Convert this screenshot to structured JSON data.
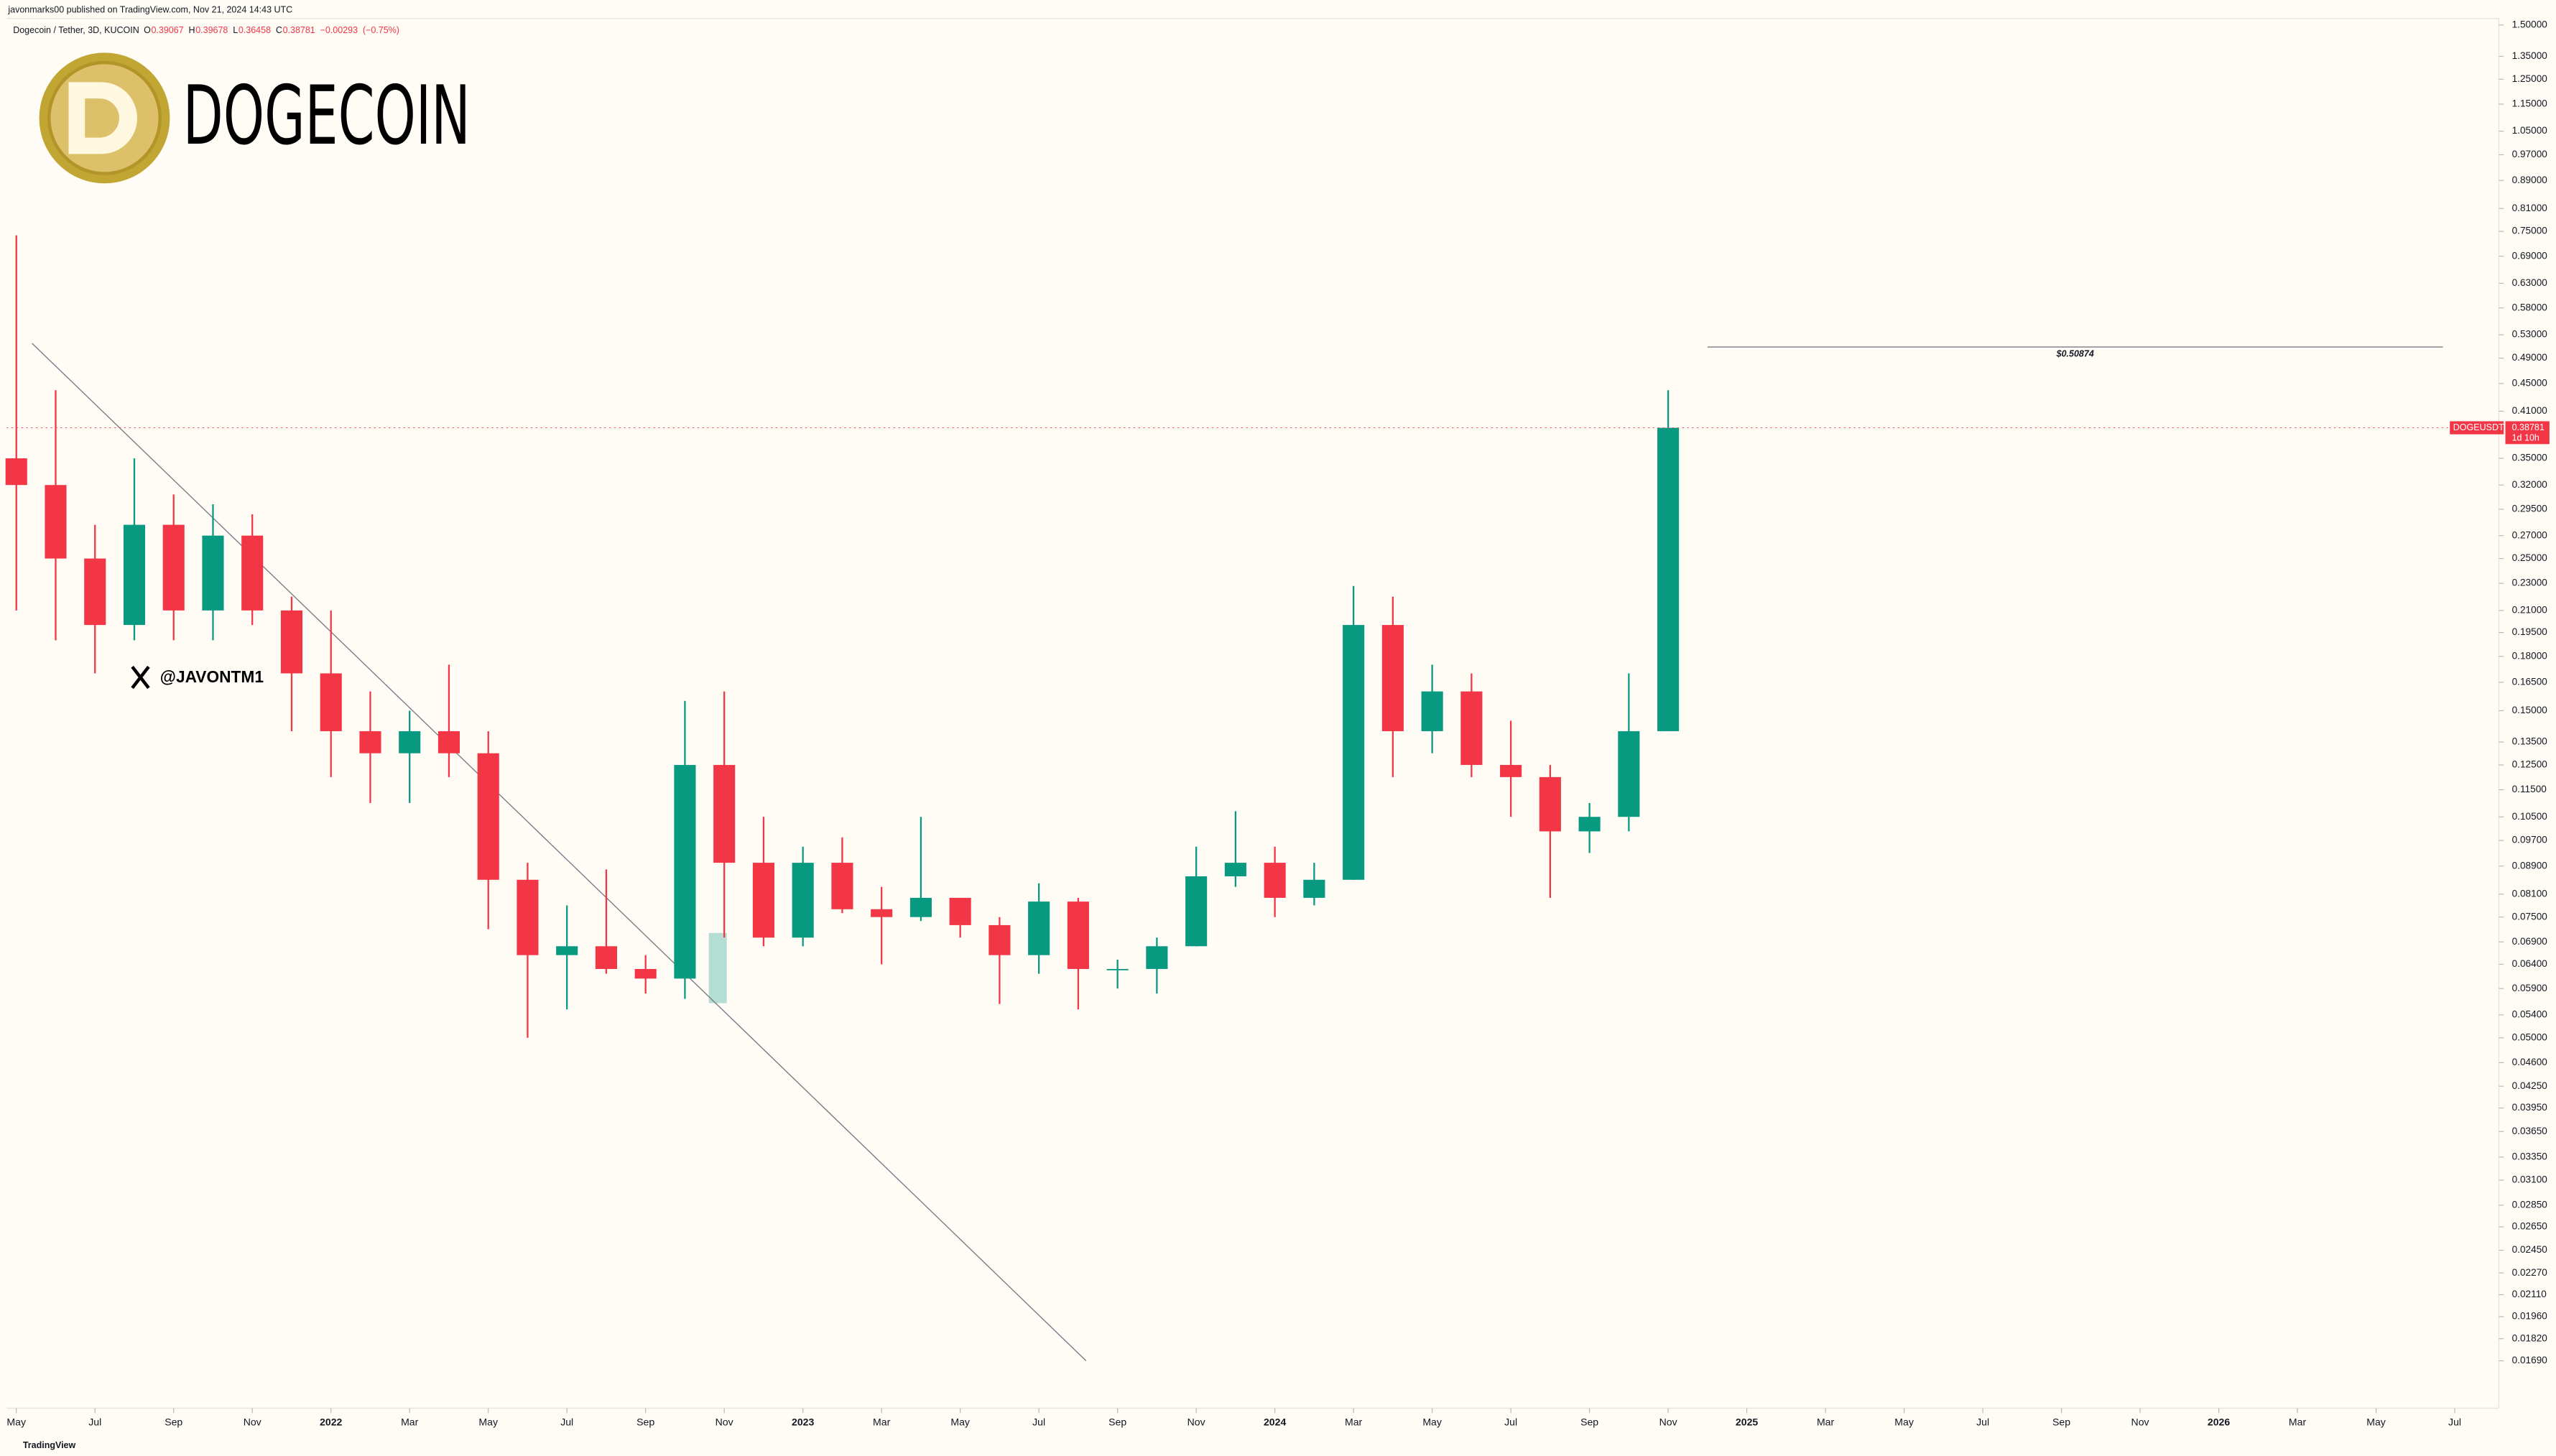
{
  "header": {
    "publisher": "javonmarks00 published on TradingView.com, Nov 21, 2024 14:43 UTC",
    "symbol": "Dogecoin / Tether, 3D, KUCOIN",
    "brand": "TradingView",
    "logo_text": "DOGECOIN",
    "handle": "@JAVONTM1"
  },
  "ohlc_legend": {
    "open_label": "O",
    "open": 0.39067,
    "high_label": "H",
    "high": 0.39678,
    "low_label": "L",
    "low": 0.36458,
    "close_label": "C",
    "close": 0.38781,
    "change": {
      "value": -0.00293,
      "label": "−0.00293"
    },
    "change_pct": {
      "value": -0.75,
      "label": "(−0.75%)"
    }
  },
  "chart_data": {
    "type": "candlestick",
    "log_scale": true,
    "x": [
      0,
      1,
      2,
      3,
      4,
      5,
      6,
      7,
      8,
      9,
      10,
      11,
      12,
      13,
      14,
      15,
      16,
      17,
      18,
      19,
      20,
      21,
      22,
      23,
      24,
      25,
      26,
      27,
      28,
      29,
      30,
      31,
      32,
      33,
      34,
      35,
      36,
      37,
      38,
      39,
      40,
      41,
      42
    ],
    "series": [
      {
        "name": "DOGEUSDT",
        "up_color": "#089981",
        "down_color": "#f23645",
        "open": [
          0.35,
          0.32,
          0.25,
          0.2,
          0.28,
          0.21,
          0.27,
          0.21,
          0.17,
          0.14,
          0.13,
          0.14,
          0.13,
          0.085,
          0.066,
          0.068,
          0.063,
          0.061,
          0.125,
          0.09,
          0.07,
          0.09,
          0.077,
          0.075,
          0.08,
          0.073,
          0.066,
          0.079,
          0.063,
          0.063,
          0.068,
          0.086,
          0.09,
          0.08,
          0.085,
          0.2,
          0.14,
          0.16,
          0.125,
          0.12,
          0.1,
          0.105,
          0.14
        ],
        "high": [
          0.74,
          0.44,
          0.28,
          0.35,
          0.31,
          0.3,
          0.29,
          0.22,
          0.21,
          0.16,
          0.15,
          0.175,
          0.14,
          0.09,
          0.078,
          0.088,
          0.066,
          0.155,
          0.16,
          0.105,
          0.095,
          0.098,
          0.083,
          0.105,
          0.08,
          0.075,
          0.084,
          0.08,
          0.065,
          0.07,
          0.095,
          0.107,
          0.095,
          0.09,
          0.228,
          0.22,
          0.175,
          0.17,
          0.145,
          0.125,
          0.11,
          0.17,
          0.44
        ],
        "low": [
          0.21,
          0.19,
          0.17,
          0.19,
          0.19,
          0.19,
          0.2,
          0.14,
          0.12,
          0.11,
          0.11,
          0.12,
          0.072,
          0.05,
          0.055,
          0.062,
          0.058,
          0.057,
          0.07,
          0.068,
          0.068,
          0.076,
          0.064,
          0.074,
          0.07,
          0.056,
          0.062,
          0.055,
          0.059,
          0.058,
          0.068,
          0.083,
          0.075,
          0.078,
          0.085,
          0.12,
          0.13,
          0.12,
          0.105,
          0.08,
          0.093,
          0.1,
          0.14
        ],
        "close": [
          0.32,
          0.25,
          0.2,
          0.28,
          0.21,
          0.27,
          0.21,
          0.17,
          0.14,
          0.13,
          0.14,
          0.13,
          0.085,
          0.066,
          0.068,
          0.063,
          0.061,
          0.125,
          0.09,
          0.07,
          0.09,
          0.077,
          0.075,
          0.08,
          0.073,
          0.066,
          0.079,
          0.063,
          0.063,
          0.068,
          0.086,
          0.09,
          0.08,
          0.085,
          0.2,
          0.14,
          0.16,
          0.125,
          0.12,
          0.1,
          0.105,
          0.14,
          0.38781
        ]
      }
    ],
    "last_price": {
      "symbol": "DOGEUSDT",
      "value": 0.38781,
      "label": "0.38781",
      "countdown": "1d 10h"
    },
    "target_line": {
      "value": 0.50874,
      "label": "$0.50874",
      "x": [
        43,
        61.7
      ]
    },
    "trendline": {
      "x": [
        0.4,
        27.2
      ],
      "y": [
        0.515,
        0.0169
      ]
    },
    "xlim": [
      -0.2,
      64.5
    ],
    "xticks": [
      {
        "value": 0,
        "label": "May"
      },
      {
        "value": 2,
        "label": "Jul"
      },
      {
        "value": 4,
        "label": "Sep"
      },
      {
        "value": 6,
        "label": "Nov"
      },
      {
        "value": 8,
        "label": "2022"
      },
      {
        "value": 10,
        "label": "Mar"
      },
      {
        "value": 12,
        "label": "May"
      },
      {
        "value": 14,
        "label": "Jul"
      },
      {
        "value": 16,
        "label": "Sep"
      },
      {
        "value": 18,
        "label": "Nov"
      },
      {
        "value": 20,
        "label": "2023"
      },
      {
        "value": 22,
        "label": "Mar"
      },
      {
        "value": 24,
        "label": "May"
      },
      {
        "value": 26,
        "label": "Jul"
      },
      {
        "value": 28,
        "label": "Sep"
      },
      {
        "value": 30,
        "label": "Nov"
      },
      {
        "value": 32,
        "label": "2024"
      },
      {
        "value": 34,
        "label": "Mar"
      },
      {
        "value": 36,
        "label": "May"
      },
      {
        "value": 38,
        "label": "Jul"
      },
      {
        "value": 40,
        "label": "Sep"
      },
      {
        "value": 42,
        "label": "Nov"
      },
      {
        "value": 44,
        "label": "2025"
      },
      {
        "value": 46,
        "label": "Mar"
      },
      {
        "value": 48,
        "label": "May"
      },
      {
        "value": 50,
        "label": "Jul"
      },
      {
        "value": 52,
        "label": "Sep"
      },
      {
        "value": 54,
        "label": "Nov"
      },
      {
        "value": 56,
        "label": "2026"
      },
      {
        "value": 58,
        "label": "Mar"
      },
      {
        "value": 60,
        "label": "May"
      },
      {
        "value": 62,
        "label": "Jul"
      }
    ],
    "ylim": [
      0.0169,
      1.5
    ],
    "yticks": [
      {
        "value": 1.5,
        "label": "1.50000"
      },
      {
        "value": 1.35,
        "label": "1.35000"
      },
      {
        "value": 1.25,
        "label": "1.25000"
      },
      {
        "value": 1.15,
        "label": "1.15000"
      },
      {
        "value": 1.05,
        "label": "1.05000"
      },
      {
        "value": 0.97,
        "label": "0.97000"
      },
      {
        "value": 0.89,
        "label": "0.89000"
      },
      {
        "value": 0.81,
        "label": "0.81000"
      },
      {
        "value": 0.75,
        "label": "0.75000"
      },
      {
        "value": 0.69,
        "label": "0.69000"
      },
      {
        "value": 0.63,
        "label": "0.63000"
      },
      {
        "value": 0.58,
        "label": "0.58000"
      },
      {
        "value": 0.53,
        "label": "0.53000"
      },
      {
        "value": 0.49,
        "label": "0.49000"
      },
      {
        "value": 0.45,
        "label": "0.45000"
      },
      {
        "value": 0.41,
        "label": "0.41000"
      },
      {
        "value": 0.35,
        "label": "0.35000"
      },
      {
        "value": 0.32,
        "label": "0.32000"
      },
      {
        "value": 0.295,
        "label": "0.29500"
      },
      {
        "value": 0.27,
        "label": "0.27000"
      },
      {
        "value": 0.25,
        "label": "0.25000"
      },
      {
        "value": 0.23,
        "label": "0.23000"
      },
      {
        "value": 0.21,
        "label": "0.21000"
      },
      {
        "value": 0.195,
        "label": "0.19500"
      },
      {
        "value": 0.18,
        "label": "0.18000"
      },
      {
        "value": 0.165,
        "label": "0.16500"
      },
      {
        "value": 0.15,
        "label": "0.15000"
      },
      {
        "value": 0.135,
        "label": "0.13500"
      },
      {
        "value": 0.125,
        "label": "0.12500"
      },
      {
        "value": 0.115,
        "label": "0.11500"
      },
      {
        "value": 0.105,
        "label": "0.10500"
      },
      {
        "value": 0.097,
        "label": "0.09700"
      },
      {
        "value": 0.089,
        "label": "0.08900"
      },
      {
        "value": 0.081,
        "label": "0.08100"
      },
      {
        "value": 0.075,
        "label": "0.07500"
      },
      {
        "value": 0.069,
        "label": "0.06900"
      },
      {
        "value": 0.064,
        "label": "0.06400"
      },
      {
        "value": 0.059,
        "label": "0.05900"
      },
      {
        "value": 0.054,
        "label": "0.05400"
      },
      {
        "value": 0.05,
        "label": "0.05000"
      },
      {
        "value": 0.046,
        "label": "0.04600"
      },
      {
        "value": 0.0425,
        "label": "0.04250"
      },
      {
        "value": 0.0395,
        "label": "0.03950"
      },
      {
        "value": 0.0365,
        "label": "0.03650"
      },
      {
        "value": 0.0335,
        "label": "0.03350"
      },
      {
        "value": 0.031,
        "label": "0.03100"
      },
      {
        "value": 0.0285,
        "label": "0.02850"
      },
      {
        "value": 0.0265,
        "label": "0.02650"
      },
      {
        "value": 0.0245,
        "label": "0.02450"
      },
      {
        "value": 0.0227,
        "label": "0.02270"
      },
      {
        "value": 0.0211,
        "label": "0.02110"
      },
      {
        "value": 0.0196,
        "label": "0.01960"
      },
      {
        "value": 0.0182,
        "label": "0.01820"
      },
      {
        "value": 0.0169,
        "label": "0.01690"
      }
    ]
  }
}
